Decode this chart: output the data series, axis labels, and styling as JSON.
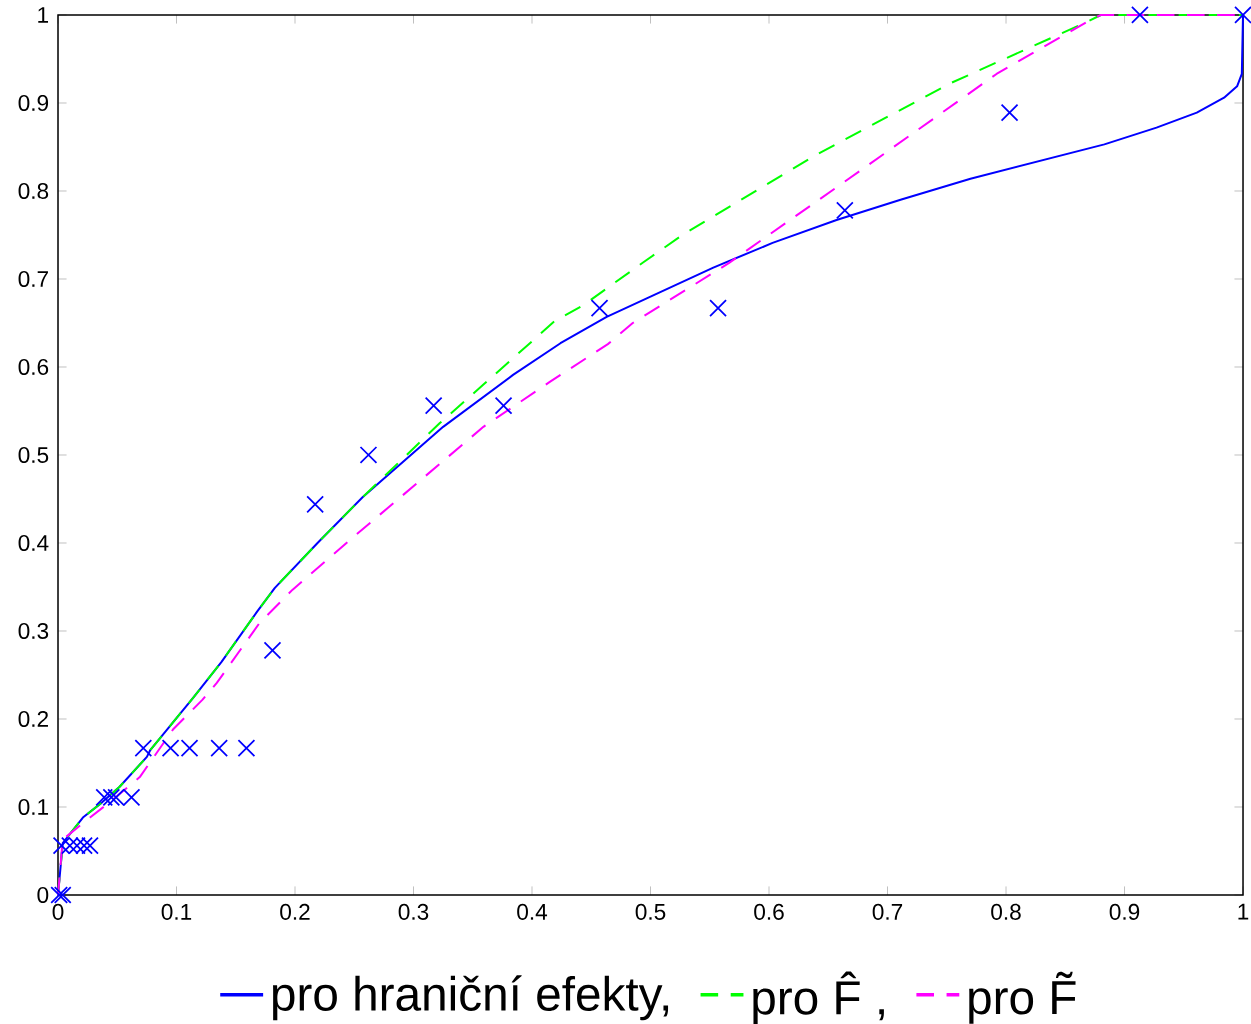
{
  "chart_data": {
    "type": "line",
    "xlim": [
      0,
      1
    ],
    "ylim": [
      0,
      1
    ],
    "xticks": [
      0,
      0.1,
      0.2,
      0.3,
      0.4,
      0.5,
      0.6,
      0.7,
      0.8,
      0.9,
      1
    ],
    "yticks": [
      0,
      0.1,
      0.2,
      0.3,
      0.4,
      0.5,
      0.6,
      0.7,
      0.8,
      0.9,
      1
    ],
    "legend": "bottom",
    "series": [
      {
        "type": "scatter",
        "color": "#0000ff",
        "marker": "cross",
        "x": [
          0.001,
          0.004,
          0.003,
          0.01,
          0.016,
          0.022,
          0.027,
          0.039,
          0.045,
          0.049,
          0.062,
          0.072,
          0.095,
          0.111,
          0.136,
          0.159,
          0.181,
          0.217,
          0.262,
          0.317,
          0.376,
          0.457,
          0.557,
          0.664,
          0.803,
          0.913,
          1
        ],
        "values": [
          0,
          0,
          0.056,
          0.056,
          0.056,
          0.056,
          0.056,
          0.111,
          0.111,
          0.111,
          0.111,
          0.167,
          0.167,
          0.167,
          0.167,
          0.167,
          0.278,
          0.444,
          0.5,
          0.556,
          0.556,
          0.667,
          0.667,
          0.778,
          0.889,
          1,
          1
        ]
      },
      {
        "type": "line",
        "name": "pro hraniční efekty,",
        "color": "#0000ff",
        "line_style": "solid",
        "x": [
          0,
          0.004,
          0.021,
          0.037,
          0.052,
          0.075,
          0.078,
          0.114,
          0.138,
          0.168,
          0.183,
          0.219,
          0.257,
          0.325,
          0.384,
          0.424,
          0.463,
          0.5,
          0.553,
          0.603,
          0.657,
          0.711,
          0.77,
          0.883,
          0.927,
          0.961,
          0.984,
          0.995,
          0.999,
          1
        ],
        "values": [
          0,
          0.059,
          0.088,
          0.105,
          0.123,
          0.157,
          0.165,
          0.224,
          0.265,
          0.322,
          0.349,
          0.4,
          0.452,
          0.532,
          0.591,
          0.627,
          0.657,
          0.68,
          0.713,
          0.741,
          0.767,
          0.79,
          0.814,
          0.853,
          0.872,
          0.889,
          0.906,
          0.919,
          0.933,
          1
        ]
      },
      {
        "type": "line",
        "name": "pro F̂ ,",
        "color": "#00ff00",
        "line_style": "dashed",
        "x": [
          0,
          0.004,
          0.021,
          0.037,
          0.052,
          0.075,
          0.078,
          0.114,
          0.138,
          0.168,
          0.183,
          0.219,
          0.257,
          0.322,
          0.359,
          0.419,
          0.443,
          0.494,
          0.528,
          0.641,
          0.754,
          0.868,
          0.88,
          1
        ],
        "values": [
          0,
          0.059,
          0.088,
          0.105,
          0.123,
          0.157,
          0.165,
          0.224,
          0.265,
          0.322,
          0.349,
          0.4,
          0.452,
          0.536,
          0.58,
          0.652,
          0.67,
          0.719,
          0.751,
          0.842,
          0.923,
          0.992,
          1,
          1
        ]
      },
      {
        "type": "line",
        "name": "pro F̃",
        "color": "#ff00ff",
        "line_style": "dashed",
        "x": [
          0,
          0.004,
          0.027,
          0.046,
          0.069,
          0.097,
          0.122,
          0.134,
          0.17,
          0.198,
          0.246,
          0.303,
          0.359,
          0.415,
          0.464,
          0.485,
          0.566,
          0.678,
          0.792,
          0.868,
          0.88,
          1
        ],
        "values": [
          0,
          0.063,
          0.088,
          0.108,
          0.134,
          0.188,
          0.222,
          0.241,
          0.309,
          0.347,
          0.403,
          0.468,
          0.532,
          0.583,
          0.626,
          0.65,
          0.718,
          0.824,
          0.933,
          0.992,
          1,
          1
        ]
      }
    ]
  }
}
